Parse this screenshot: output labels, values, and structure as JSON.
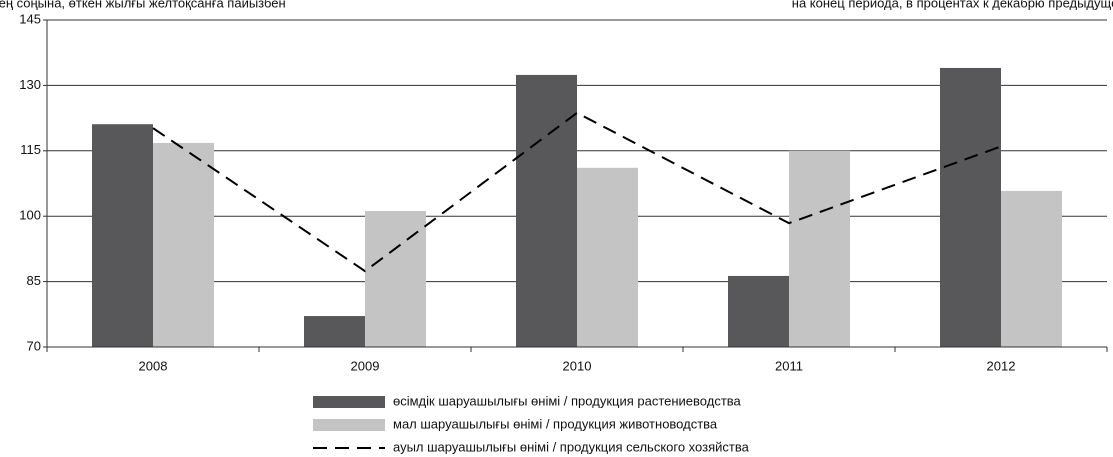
{
  "chart_data": {
    "type": "bar",
    "subtitle_left": "кезең соңына, өткен жылғы желтоқсанға пайызбен",
    "subtitle_right": "на конец периода, в процентах к декабрю предыдущего",
    "categories": [
      "2008",
      "2009",
      "2010",
      "2011",
      "2012"
    ],
    "series": [
      {
        "name": "өсімдік шаруашылығы өнімі / продукция растениеводства",
        "type": "bar",
        "color": "#58585a",
        "values": [
          121.1,
          77.1,
          132.4,
          86.3,
          134.0
        ]
      },
      {
        "name": "мал шаруашылығы өнімі / продукция животноводства",
        "type": "bar",
        "color": "#c4c4c4",
        "values": [
          116.8,
          101.2,
          111.1,
          115.0,
          105.8
        ]
      },
      {
        "name": "ауыл шаруашылығы өнімі / продукция сельского хозяйства",
        "type": "line",
        "color": "#000000",
        "dash": true,
        "values": [
          120.2,
          87.4,
          123.7,
          98.4,
          116.0
        ]
      }
    ],
    "ylim": [
      70,
      145
    ],
    "yticks": [
      70,
      85,
      100,
      115,
      130,
      145
    ],
    "grid": true,
    "legend": "bottom"
  }
}
